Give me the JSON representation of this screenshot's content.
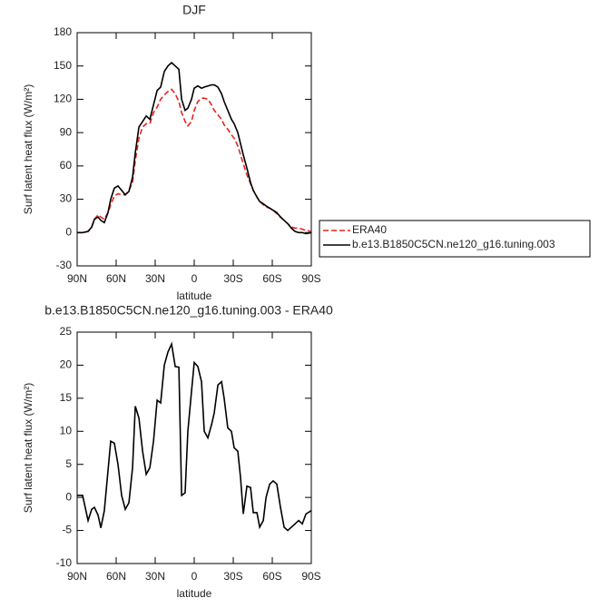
{
  "chart_data": [
    {
      "type": "line",
      "title": "DJF",
      "xlabel": "latitude",
      "ylabel": "Surf latent heat flux (W/m²)",
      "x": [
        90,
        85.8,
        81.6,
        78.8,
        76.7,
        73.9,
        71.8,
        69.1,
        66.3,
        64.2,
        61.4,
        58.6,
        55.8,
        53,
        50.2,
        47.4,
        45.3,
        42.5,
        39.7,
        36.9,
        34.1,
        31.3,
        28.5,
        25.8,
        23,
        20.2,
        17.4,
        14.6,
        11.8,
        9.7,
        7,
        4.9,
        2.1,
        0,
        -2.8,
        -5.6,
        -7.7,
        -10.5,
        -13.3,
        -15.4,
        -18.2,
        -21,
        -23,
        -25.8,
        -28.6,
        -30.7,
        -33.5,
        -35.6,
        -37.7,
        -40.5,
        -43.3,
        -45.4,
        -48.2,
        -50.3,
        -53.1,
        -55.2,
        -58,
        -60.7,
        -63.5,
        -66.3,
        -69.1,
        -71.9,
        -74.7,
        -77.5,
        -80.3,
        -83.1,
        -85.9,
        -90
      ],
      "series": [
        {
          "name": "ERA40",
          "color": "#e8231f",
          "dashed": true,
          "values": [
            0,
            0,
            1,
            5,
            12,
            16,
            14,
            12,
            18,
            25,
            33,
            35,
            34,
            34,
            38,
            45,
            65,
            85,
            95,
            98,
            98,
            108,
            113,
            120,
            124,
            127,
            129,
            125,
            118,
            108,
            100,
            96,
            100,
            110,
            118,
            121,
            121,
            120,
            115,
            110,
            106,
            102,
            97,
            93,
            88,
            85,
            78,
            70,
            62,
            52,
            44,
            38,
            32,
            28,
            25,
            23,
            22,
            20,
            17,
            14,
            11,
            8,
            5,
            4,
            4,
            3,
            2,
            1
          ]
        },
        {
          "name": "b.e13.B1850C5CN.ne120_g16.tuning.003",
          "color": "#000000",
          "dashed": false,
          "values": [
            0,
            0,
            1,
            5,
            12,
            14,
            11,
            9,
            18,
            30,
            40,
            42,
            38,
            34,
            37,
            50,
            72,
            95,
            100,
            105,
            102,
            115,
            128,
            131,
            145,
            150,
            153,
            150,
            147,
            120,
            110,
            112,
            120,
            130,
            132,
            130,
            131,
            132,
            133,
            133,
            131,
            125,
            118,
            110,
            102,
            98,
            90,
            80,
            70,
            58,
            45,
            38,
            32,
            28,
            26,
            24,
            22,
            20,
            18,
            14,
            11,
            8,
            4,
            1,
            0,
            0,
            -1,
            0
          ]
        }
      ],
      "xlim": [
        90,
        -90
      ],
      "xticks": [
        {
          "value": 90,
          "label": "90N"
        },
        {
          "value": 60,
          "label": "60N"
        },
        {
          "value": 30,
          "label": "30N"
        },
        0,
        {
          "value": -30,
          "label": "30S"
        },
        {
          "value": -60,
          "label": "60S"
        },
        {
          "value": -90,
          "label": "90S"
        }
      ],
      "ylim": [
        -30,
        180
      ],
      "yticks": [
        -30,
        0,
        30,
        60,
        90,
        120,
        150,
        180
      ]
    },
    {
      "type": "line",
      "title": "b.e13.B1850C5CN.ne120_g16.tuning.003 - ERA40",
      "xlabel": "latitude",
      "ylabel": "Surf latent heat flux (W/m²)",
      "x": [
        90,
        85.8,
        81.6,
        78.8,
        76.7,
        73.9,
        71.8,
        69.1,
        66.3,
        64.2,
        61.4,
        58.6,
        55.8,
        53,
        50.2,
        47.4,
        45.3,
        42.5,
        39.7,
        36.9,
        34.1,
        31.3,
        28.5,
        25.8,
        23,
        20.2,
        17.4,
        14.6,
        11.8,
        9.7,
        7,
        4.9,
        2.1,
        0,
        -2.8,
        -5.6,
        -7.7,
        -10.5,
        -13.3,
        -15.4,
        -18.2,
        -21,
        -23,
        -25.8,
        -28.6,
        -30.7,
        -33.5,
        -35.6,
        -37.7,
        -40.5,
        -43.3,
        -45.4,
        -48.2,
        -50.3,
        -53.1,
        -55.2,
        -58,
        -60.7,
        -63.5,
        -66.3,
        -69.1,
        -71.9,
        -74.7,
        -77.5,
        -80.3,
        -83.1,
        -85.9,
        -90
      ],
      "color": "#000000",
      "values": [
        0.3,
        0.3,
        -3.5,
        -1.8,
        -1.5,
        -2.7,
        -4.6,
        -2,
        4,
        8.5,
        8.2,
        5,
        0.3,
        -1.8,
        -0.8,
        4.5,
        13.8,
        12,
        7,
        3.5,
        4.5,
        8.5,
        14.7,
        14.3,
        20,
        22,
        23.2,
        19.8,
        19.7,
        0.3,
        0.7,
        10,
        16,
        20.4,
        19.8,
        17.5,
        10,
        9,
        11,
        12.8,
        17,
        17.5,
        15,
        10.5,
        10,
        7.5,
        7,
        3,
        -2.5,
        1.7,
        1.5,
        -2.3,
        -2.3,
        -4.5,
        -3.5,
        0,
        2,
        2.5,
        2,
        -1.5,
        -4.5,
        -5,
        -4.5,
        -4,
        -3.5,
        -4,
        -2.5,
        -2
      ],
      "xlim": [
        90,
        -90
      ],
      "xticks": [
        {
          "value": 90,
          "label": "90N"
        },
        {
          "value": 60,
          "label": "60N"
        },
        {
          "value": 30,
          "label": "30N"
        },
        0,
        {
          "value": -30,
          "label": "30S"
        },
        {
          "value": -60,
          "label": "60S"
        },
        {
          "value": -90,
          "label": "90S"
        }
      ],
      "ylim": [
        -10,
        25
      ],
      "yticks": [
        -10,
        -5,
        0,
        5,
        10,
        15,
        20,
        25
      ]
    }
  ]
}
